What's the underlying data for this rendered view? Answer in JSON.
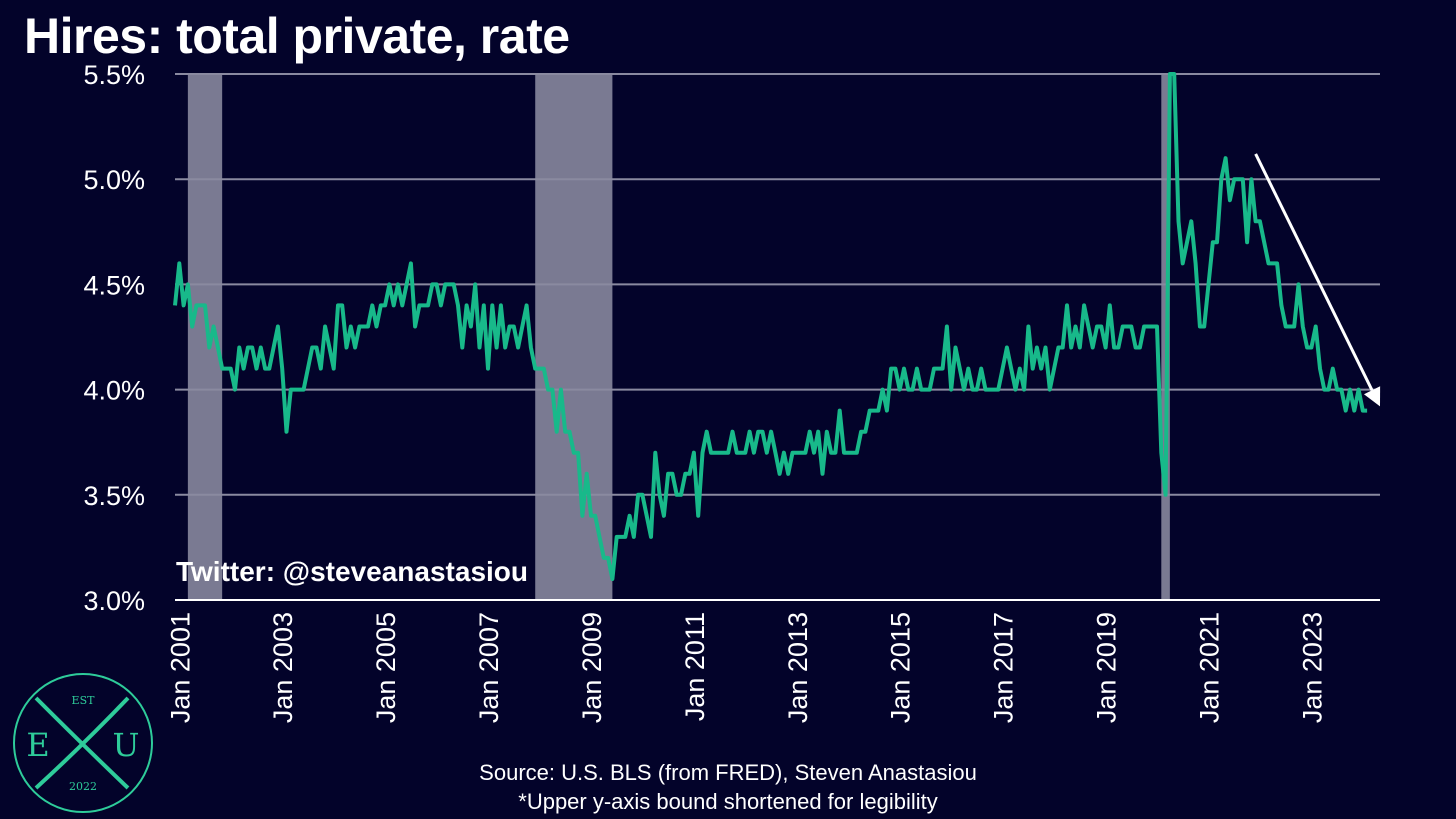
{
  "title": "Hires: total private, rate",
  "watermark": "Twitter: @steveanastasiou",
  "footer": {
    "source": "Source: U.S. BLS (from FRED), Steven Anastasiou",
    "note": "*Upper y-axis bound shortened for legibility"
  },
  "logo": {
    "top": "EST",
    "left": "E",
    "right": "U",
    "bottom": "2022"
  },
  "colors": {
    "background": "#03032a",
    "line": "#18b98a",
    "recession": "#7a7a92",
    "grid": "#8a8aa0",
    "arrow": "#ffffff",
    "logo": "#2ecc9a"
  },
  "chart_data": {
    "type": "line",
    "x_unit": "month",
    "ylim": [
      3.0,
      5.5
    ],
    "y_ticks": [
      3.0,
      3.5,
      4.0,
      4.5,
      5.0,
      5.5
    ],
    "y_tick_labels": [
      "3.0%",
      "3.5%",
      "4.0%",
      "4.5%",
      "5.0%",
      "5.5%"
    ],
    "x_ticks": [
      "2001-01",
      "2003-01",
      "2005-01",
      "2007-01",
      "2009-01",
      "2011-01",
      "2013-01",
      "2015-01",
      "2017-01",
      "2019-01",
      "2021-01",
      "2023-01"
    ],
    "x_tick_labels": [
      "Jan 2001",
      "Jan 2003",
      "Jan 2005",
      "Jan 2007",
      "Jan 2009",
      "Jan 2011",
      "Jan 2013",
      "Jan 2015",
      "Jan 2017",
      "Jan 2019",
      "Jan 2021",
      "Jan 2023"
    ],
    "x_range": [
      "2000-12",
      "2024-05"
    ],
    "grid": "horizontal",
    "recessions": [
      [
        "2001-03",
        "2001-11"
      ],
      [
        "2007-12",
        "2009-06"
      ],
      [
        "2020-02",
        "2020-04"
      ]
    ],
    "trend_arrow": {
      "from": [
        "2021-12",
        5.12
      ],
      "to": [
        "2024-05",
        3.92
      ]
    },
    "series": [
      {
        "values": [
          [
            "2000-12",
            4.4
          ],
          [
            "2001-01",
            4.6
          ],
          [
            "2001-02",
            4.4
          ],
          [
            "2001-03",
            4.5
          ],
          [
            "2001-04",
            4.3
          ],
          [
            "2001-05",
            4.4
          ],
          [
            "2001-06",
            4.4
          ],
          [
            "2001-07",
            4.4
          ],
          [
            "2001-08",
            4.2
          ],
          [
            "2001-09",
            4.3
          ],
          [
            "2001-10",
            4.2
          ],
          [
            "2001-11",
            4.1
          ],
          [
            "2001-12",
            4.1
          ],
          [
            "2002-01",
            4.1
          ],
          [
            "2002-02",
            4.0
          ],
          [
            "2002-03",
            4.2
          ],
          [
            "2002-04",
            4.1
          ],
          [
            "2002-05",
            4.2
          ],
          [
            "2002-06",
            4.2
          ],
          [
            "2002-07",
            4.1
          ],
          [
            "2002-08",
            4.2
          ],
          [
            "2002-09",
            4.1
          ],
          [
            "2002-10",
            4.1
          ],
          [
            "2002-11",
            4.2
          ],
          [
            "2002-12",
            4.3
          ],
          [
            "2003-01",
            4.1
          ],
          [
            "2003-02",
            3.8
          ],
          [
            "2003-03",
            4.0
          ],
          [
            "2003-04",
            4.0
          ],
          [
            "2003-05",
            4.0
          ],
          [
            "2003-06",
            4.0
          ],
          [
            "2003-07",
            4.1
          ],
          [
            "2003-08",
            4.2
          ],
          [
            "2003-09",
            4.2
          ],
          [
            "2003-10",
            4.1
          ],
          [
            "2003-11",
            4.3
          ],
          [
            "2003-12",
            4.2
          ],
          [
            "2004-01",
            4.1
          ],
          [
            "2004-02",
            4.4
          ],
          [
            "2004-03",
            4.4
          ],
          [
            "2004-04",
            4.2
          ],
          [
            "2004-05",
            4.3
          ],
          [
            "2004-06",
            4.2
          ],
          [
            "2004-07",
            4.3
          ],
          [
            "2004-08",
            4.3
          ],
          [
            "2004-09",
            4.3
          ],
          [
            "2004-10",
            4.4
          ],
          [
            "2004-11",
            4.3
          ],
          [
            "2004-12",
            4.4
          ],
          [
            "2005-01",
            4.4
          ],
          [
            "2005-02",
            4.5
          ],
          [
            "2005-03",
            4.4
          ],
          [
            "2005-04",
            4.5
          ],
          [
            "2005-05",
            4.4
          ],
          [
            "2005-06",
            4.5
          ],
          [
            "2005-07",
            4.6
          ],
          [
            "2005-08",
            4.3
          ],
          [
            "2005-09",
            4.4
          ],
          [
            "2005-10",
            4.4
          ],
          [
            "2005-11",
            4.4
          ],
          [
            "2005-12",
            4.5
          ],
          [
            "2006-01",
            4.5
          ],
          [
            "2006-02",
            4.4
          ],
          [
            "2006-03",
            4.5
          ],
          [
            "2006-04",
            4.5
          ],
          [
            "2006-05",
            4.5
          ],
          [
            "2006-06",
            4.4
          ],
          [
            "2006-07",
            4.2
          ],
          [
            "2006-08",
            4.4
          ],
          [
            "2006-09",
            4.3
          ],
          [
            "2006-10",
            4.5
          ],
          [
            "2006-11",
            4.2
          ],
          [
            "2006-12",
            4.4
          ],
          [
            "2007-01",
            4.1
          ],
          [
            "2007-02",
            4.4
          ],
          [
            "2007-03",
            4.2
          ],
          [
            "2007-04",
            4.4
          ],
          [
            "2007-05",
            4.2
          ],
          [
            "2007-06",
            4.3
          ],
          [
            "2007-07",
            4.3
          ],
          [
            "2007-08",
            4.2
          ],
          [
            "2007-09",
            4.3
          ],
          [
            "2007-10",
            4.4
          ],
          [
            "2007-11",
            4.2
          ],
          [
            "2007-12",
            4.1
          ],
          [
            "2008-01",
            4.1
          ],
          [
            "2008-02",
            4.1
          ],
          [
            "2008-03",
            4.0
          ],
          [
            "2008-04",
            4.0
          ],
          [
            "2008-05",
            3.8
          ],
          [
            "2008-06",
            4.0
          ],
          [
            "2008-07",
            3.8
          ],
          [
            "2008-08",
            3.8
          ],
          [
            "2008-09",
            3.7
          ],
          [
            "2008-10",
            3.7
          ],
          [
            "2008-11",
            3.4
          ],
          [
            "2008-12",
            3.6
          ],
          [
            "2009-01",
            3.4
          ],
          [
            "2009-02",
            3.4
          ],
          [
            "2009-03",
            3.3
          ],
          [
            "2009-04",
            3.2
          ],
          [
            "2009-05",
            3.2
          ],
          [
            "2009-06",
            3.1
          ],
          [
            "2009-07",
            3.3
          ],
          [
            "2009-08",
            3.3
          ],
          [
            "2009-09",
            3.3
          ],
          [
            "2009-10",
            3.4
          ],
          [
            "2009-11",
            3.3
          ],
          [
            "2009-12",
            3.5
          ],
          [
            "2010-01",
            3.5
          ],
          [
            "2010-02",
            3.4
          ],
          [
            "2010-03",
            3.3
          ],
          [
            "2010-04",
            3.7
          ],
          [
            "2010-05",
            3.5
          ],
          [
            "2010-06",
            3.4
          ],
          [
            "2010-07",
            3.6
          ],
          [
            "2010-08",
            3.6
          ],
          [
            "2010-09",
            3.5
          ],
          [
            "2010-10",
            3.5
          ],
          [
            "2010-11",
            3.6
          ],
          [
            "2010-12",
            3.6
          ],
          [
            "2011-01",
            3.7
          ],
          [
            "2011-02",
            3.4
          ],
          [
            "2011-03",
            3.7
          ],
          [
            "2011-04",
            3.8
          ],
          [
            "2011-05",
            3.7
          ],
          [
            "2011-06",
            3.7
          ],
          [
            "2011-07",
            3.7
          ],
          [
            "2011-08",
            3.7
          ],
          [
            "2011-09",
            3.7
          ],
          [
            "2011-10",
            3.8
          ],
          [
            "2011-11",
            3.7
          ],
          [
            "2011-12",
            3.7
          ],
          [
            "2012-01",
            3.7
          ],
          [
            "2012-02",
            3.8
          ],
          [
            "2012-03",
            3.7
          ],
          [
            "2012-04",
            3.8
          ],
          [
            "2012-05",
            3.8
          ],
          [
            "2012-06",
            3.7
          ],
          [
            "2012-07",
            3.8
          ],
          [
            "2012-08",
            3.7
          ],
          [
            "2012-09",
            3.6
          ],
          [
            "2012-10",
            3.7
          ],
          [
            "2012-11",
            3.6
          ],
          [
            "2012-12",
            3.7
          ],
          [
            "2013-01",
            3.7
          ],
          [
            "2013-02",
            3.7
          ],
          [
            "2013-03",
            3.7
          ],
          [
            "2013-04",
            3.8
          ],
          [
            "2013-05",
            3.7
          ],
          [
            "2013-06",
            3.8
          ],
          [
            "2013-07",
            3.6
          ],
          [
            "2013-08",
            3.8
          ],
          [
            "2013-09",
            3.7
          ],
          [
            "2013-10",
            3.7
          ],
          [
            "2013-11",
            3.9
          ],
          [
            "2013-12",
            3.7
          ],
          [
            "2014-01",
            3.7
          ],
          [
            "2014-02",
            3.7
          ],
          [
            "2014-03",
            3.7
          ],
          [
            "2014-04",
            3.8
          ],
          [
            "2014-05",
            3.8
          ],
          [
            "2014-06",
            3.9
          ],
          [
            "2014-07",
            3.9
          ],
          [
            "2014-08",
            3.9
          ],
          [
            "2014-09",
            4.0
          ],
          [
            "2014-10",
            3.9
          ],
          [
            "2014-11",
            4.1
          ],
          [
            "2014-12",
            4.1
          ],
          [
            "2015-01",
            4.0
          ],
          [
            "2015-02",
            4.1
          ],
          [
            "2015-03",
            4.0
          ],
          [
            "2015-04",
            4.0
          ],
          [
            "2015-05",
            4.1
          ],
          [
            "2015-06",
            4.0
          ],
          [
            "2015-07",
            4.0
          ],
          [
            "2015-08",
            4.0
          ],
          [
            "2015-09",
            4.1
          ],
          [
            "2015-10",
            4.1
          ],
          [
            "2015-11",
            4.1
          ],
          [
            "2015-12",
            4.3
          ],
          [
            "2016-01",
            4.0
          ],
          [
            "2016-02",
            4.2
          ],
          [
            "2016-03",
            4.1
          ],
          [
            "2016-04",
            4.0
          ],
          [
            "2016-05",
            4.1
          ],
          [
            "2016-06",
            4.0
          ],
          [
            "2016-07",
            4.0
          ],
          [
            "2016-08",
            4.1
          ],
          [
            "2016-09",
            4.0
          ],
          [
            "2016-10",
            4.0
          ],
          [
            "2016-11",
            4.0
          ],
          [
            "2016-12",
            4.0
          ],
          [
            "2017-01",
            4.1
          ],
          [
            "2017-02",
            4.2
          ],
          [
            "2017-03",
            4.1
          ],
          [
            "2017-04",
            4.0
          ],
          [
            "2017-05",
            4.1
          ],
          [
            "2017-06",
            4.0
          ],
          [
            "2017-07",
            4.3
          ],
          [
            "2017-08",
            4.1
          ],
          [
            "2017-09",
            4.2
          ],
          [
            "2017-10",
            4.1
          ],
          [
            "2017-11",
            4.2
          ],
          [
            "2017-12",
            4.0
          ],
          [
            "2018-01",
            4.1
          ],
          [
            "2018-02",
            4.2
          ],
          [
            "2018-03",
            4.2
          ],
          [
            "2018-04",
            4.4
          ],
          [
            "2018-05",
            4.2
          ],
          [
            "2018-06",
            4.3
          ],
          [
            "2018-07",
            4.2
          ],
          [
            "2018-08",
            4.4
          ],
          [
            "2018-09",
            4.3
          ],
          [
            "2018-10",
            4.2
          ],
          [
            "2018-11",
            4.3
          ],
          [
            "2018-12",
            4.3
          ],
          [
            "2019-01",
            4.2
          ],
          [
            "2019-02",
            4.4
          ],
          [
            "2019-03",
            4.2
          ],
          [
            "2019-04",
            4.2
          ],
          [
            "2019-05",
            4.3
          ],
          [
            "2019-06",
            4.3
          ],
          [
            "2019-07",
            4.3
          ],
          [
            "2019-08",
            4.2
          ],
          [
            "2019-09",
            4.2
          ],
          [
            "2019-10",
            4.3
          ],
          [
            "2019-11",
            4.3
          ],
          [
            "2019-12",
            4.3
          ],
          [
            "2020-01",
            4.3
          ],
          [
            "2020-02",
            3.7
          ],
          [
            "2020-03",
            3.5
          ],
          [
            "2020-04",
            5.5
          ],
          [
            "2020-05",
            5.5
          ],
          [
            "2020-06",
            4.8
          ],
          [
            "2020-07",
            4.6
          ],
          [
            "2020-08",
            4.7
          ],
          [
            "2020-09",
            4.8
          ],
          [
            "2020-10",
            4.6
          ],
          [
            "2020-11",
            4.3
          ],
          [
            "2020-12",
            4.3
          ],
          [
            "2021-01",
            4.5
          ],
          [
            "2021-02",
            4.7
          ],
          [
            "2021-03",
            4.7
          ],
          [
            "2021-04",
            5.0
          ],
          [
            "2021-05",
            5.1
          ],
          [
            "2021-06",
            4.9
          ],
          [
            "2021-07",
            5.0
          ],
          [
            "2021-08",
            5.0
          ],
          [
            "2021-09",
            5.0
          ],
          [
            "2021-10",
            4.7
          ],
          [
            "2021-11",
            5.0
          ],
          [
            "2021-12",
            4.8
          ],
          [
            "2022-01",
            4.8
          ],
          [
            "2022-02",
            4.7
          ],
          [
            "2022-03",
            4.6
          ],
          [
            "2022-04",
            4.6
          ],
          [
            "2022-05",
            4.6
          ],
          [
            "2022-06",
            4.4
          ],
          [
            "2022-07",
            4.3
          ],
          [
            "2022-08",
            4.3
          ],
          [
            "2022-09",
            4.3
          ],
          [
            "2022-10",
            4.5
          ],
          [
            "2022-11",
            4.3
          ],
          [
            "2022-12",
            4.2
          ],
          [
            "2023-01",
            4.2
          ],
          [
            "2023-02",
            4.3
          ],
          [
            "2023-03",
            4.1
          ],
          [
            "2023-04",
            4.0
          ],
          [
            "2023-05",
            4.0
          ],
          [
            "2023-06",
            4.1
          ],
          [
            "2023-07",
            4.0
          ],
          [
            "2023-08",
            4.0
          ],
          [
            "2023-09",
            3.9
          ],
          [
            "2023-10",
            4.0
          ],
          [
            "2023-11",
            3.9
          ],
          [
            "2023-12",
            4.0
          ],
          [
            "2024-01",
            3.9
          ],
          [
            "2024-02",
            3.9
          ]
        ]
      }
    ]
  }
}
